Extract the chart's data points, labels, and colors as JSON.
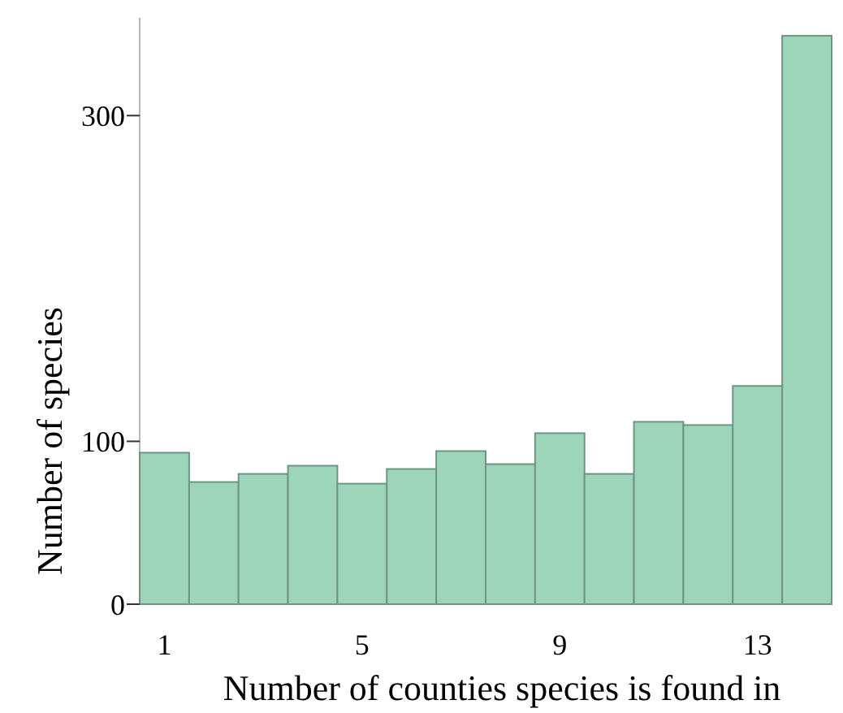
{
  "chart_data": {
    "type": "histogram",
    "xlabel": "Number of counties species is found in",
    "ylabel": "Number of species",
    "bins": [
      0.5,
      1.5,
      2.5,
      3.5,
      4.5,
      5.5,
      6.5,
      7.5,
      8.5,
      9.5,
      10.5,
      11.5,
      12.5,
      13.5,
      14.5
    ],
    "values": [
      93,
      75,
      80,
      85,
      74,
      83,
      94,
      86,
      105,
      80,
      112,
      110,
      134,
      349
    ],
    "color": "#9dd5bb",
    "xlim": [
      0.5,
      14.5
    ],
    "xticks": [
      1,
      5,
      9,
      13
    ],
    "ylim": [
      0,
      360
    ],
    "yticks": [
      0,
      100,
      300
    ],
    "grid": false
  }
}
